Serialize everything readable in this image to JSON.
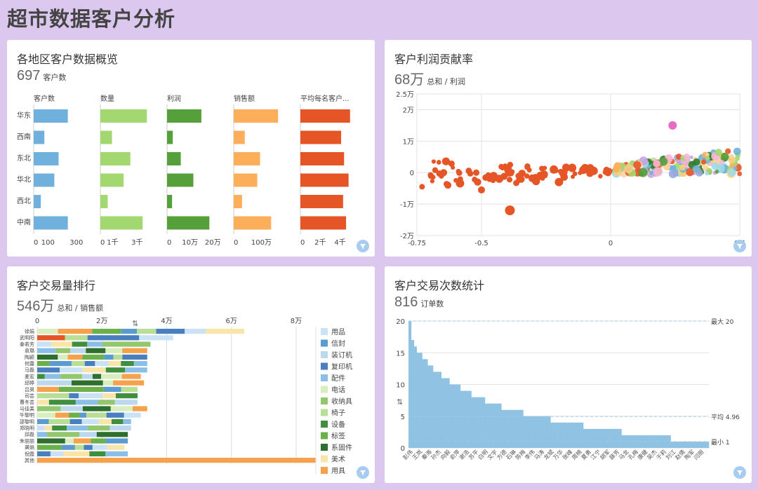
{
  "page": {
    "title": "超市数据客户分析"
  },
  "cards": {
    "region": {
      "title": "各地区客户数据概览",
      "kpi_value": "697",
      "kpi_label": "客户数"
    },
    "profit": {
      "title": "客户利润贡献率",
      "kpi_value": "68万",
      "kpi_label": "总和 / 利润"
    },
    "ranking": {
      "title": "客户交易量排行",
      "kpi_value": "546万",
      "kpi_label": "总和 / 销售额"
    },
    "txcount": {
      "title": "客户交易次数统计",
      "kpi_value": "816",
      "kpi_label": "订单数"
    }
  },
  "icons": {
    "filter": "filter-icon",
    "sort": "sort-icon"
  },
  "chart_data": [
    {
      "type": "bar",
      "id": "region",
      "categories": [
        "华东",
        "西南",
        "东北",
        "华北",
        "西北",
        "中南"
      ],
      "series": [
        {
          "name": "客户数",
          "values": [
            240,
            75,
            175,
            145,
            50,
            240
          ],
          "ticks": [
            [
              0,
              "0"
            ],
            [
              100,
              "100"
            ],
            [
              300,
              "300"
            ]
          ],
          "max": 370,
          "color": "#6fb0dc"
        },
        {
          "name": "数量",
          "values": [
            3800,
            950,
            2450,
            1900,
            600,
            3450
          ],
          "ticks": [
            [
              0,
              "0"
            ],
            [
              1000,
              "1千"
            ],
            [
              3000,
              "3千"
            ]
          ],
          "max": 4300,
          "color": "#a3d770"
        },
        {
          "name": "利润",
          "values": [
            150000,
            25000,
            60000,
            115000,
            22000,
            185000
          ],
          "ticks": [
            [
              0,
              "0"
            ],
            [
              100000,
              "10万"
            ],
            [
              200000,
              "20万"
            ]
          ],
          "max": 230000,
          "color": "#55a03a"
        },
        {
          "name": "销售额",
          "values": [
            1600000,
            400000,
            950000,
            850000,
            300000,
            1350000
          ],
          "ticks": [
            [
              0,
              "0"
            ],
            [
              1000000,
              "100万"
            ]
          ],
          "max": 1900000,
          "color": "#fdae5a"
        },
        {
          "name": "平均每名客户...",
          "values": [
            5000,
            4100,
            4400,
            4850,
            4300,
            4600
          ],
          "ticks": [
            [
              0,
              "0"
            ],
            [
              2000,
              "2千"
            ],
            [
              4000,
              "4千"
            ]
          ],
          "max": 5300,
          "color": "#e55526"
        }
      ]
    },
    {
      "type": "scatter",
      "id": "profit",
      "xlim": [
        -0.75,
        0.5
      ],
      "ylim": [
        -20000,
        25000
      ],
      "x_ticks": [
        [
          -0.75,
          "-0.75"
        ],
        [
          -0.5,
          "-0.5"
        ],
        [
          0,
          "0"
        ],
        [
          0.5,
          "0.5"
        ]
      ],
      "y_ticks": [
        [
          25000,
          "2.5万"
        ],
        [
          20000,
          "2万"
        ],
        [
          10000,
          "1万"
        ],
        [
          0,
          "0"
        ],
        [
          -10000,
          "-1万"
        ],
        [
          -20000,
          "-2万"
        ]
      ],
      "colors": [
        "#e55526",
        "#6fb0dc",
        "#a3d770",
        "#55a03a",
        "#fdae5a",
        "#c5a3e0",
        "#f7b6d2",
        "#9edae5",
        "#2d7d2d",
        "#f0d080",
        "#9aa6e0",
        "#ffd0a0"
      ],
      "highlight": {
        "x": 0.24,
        "y": 15000,
        "color": "#e86ac2"
      }
    },
    {
      "type": "bar",
      "id": "ranking",
      "stacked": true,
      "orientation": "horizontal",
      "categories": [
        "徐娟",
        "武明阳",
        "秦若芳",
        "袁璐",
        "陶颖",
        "何露",
        "马磊",
        "麦宏",
        "邱婷",
        "吕昊",
        "司芸",
        "曹冬芸",
        "马佳美",
        "牛黎明",
        "邵黎明",
        "郑晓明",
        "邱磊",
        "朱丽丽",
        "龚娟",
        "倪霞",
        "其他"
      ],
      "xlim": [
        0,
        85000
      ],
      "x_ticks": [
        [
          0,
          "0"
        ],
        [
          20000,
          "2万"
        ],
        [
          40000,
          "4万"
        ],
        [
          60000,
          "6万"
        ],
        [
          80000,
          "8万"
        ]
      ],
      "legend": [
        "用品",
        "信封",
        "装订机",
        "复印机",
        "配件",
        "电话",
        "收纳具",
        "椅子",
        "设备",
        "标签",
        "系固件",
        "美术",
        "用具"
      ],
      "legend_colors": [
        "#c9e2f5",
        "#5b9bd0",
        "#bcd8ef",
        "#4a7fbf",
        "#8bbfe8",
        "#d8eebc",
        "#93c76f",
        "#b8df95",
        "#3f8f3f",
        "#6cb04a",
        "#2e6e2e",
        "#f9e5a8",
        "#f6a24c"
      ],
      "totals": [
        64000,
        42000,
        35000,
        34000,
        34000,
        34000,
        34000,
        32000,
        33000,
        31000,
        31000,
        31000,
        34000,
        32000,
        29000,
        29000,
        28000,
        28000,
        27000,
        28000,
        86000
      ],
      "other_total_label": "其他"
    },
    {
      "type": "bar",
      "id": "txcount",
      "ylim": [
        0,
        20
      ],
      "y_ticks": [
        [
          0,
          "0"
        ],
        [
          5,
          "5"
        ],
        [
          10,
          "10"
        ],
        [
          15,
          "15"
        ],
        [
          20,
          "20"
        ]
      ],
      "max_label": "最大 20",
      "avg_label": "平均 4.96",
      "min_label": "最小 1",
      "avg": 4.96,
      "max": 20,
      "min": 1,
      "steps": [
        [
          20,
          1
        ],
        [
          17,
          1
        ],
        [
          16,
          1
        ],
        [
          15,
          2
        ],
        [
          14,
          2
        ],
        [
          13,
          2
        ],
        [
          12,
          3
        ],
        [
          11,
          3
        ],
        [
          10,
          4
        ],
        [
          9,
          4
        ],
        [
          8,
          5
        ],
        [
          7,
          6
        ],
        [
          6,
          8
        ],
        [
          5,
          10
        ],
        [
          4,
          12
        ],
        [
          3,
          14
        ],
        [
          2,
          18
        ],
        [
          1,
          14
        ]
      ],
      "x_labels": [
        "彭伟",
        "王岚",
        "秦海",
        "孙杰",
        "向毅",
        "俞萍",
        "谢浩",
        "苏平",
        "白明",
        "文宇",
        "方德",
        "石琳",
        "陈梅",
        "李伟",
        "马涛",
        "龙斌",
        "万华",
        "张峰",
        "周楠",
        "夏勇",
        "江宁",
        "胡军",
        "薛芳",
        "马龙",
        "孔梅",
        "康健",
        "吴杰",
        "于莉",
        "刘江",
        "赵倩",
        "陶军",
        "闫丽"
      ]
    }
  ]
}
